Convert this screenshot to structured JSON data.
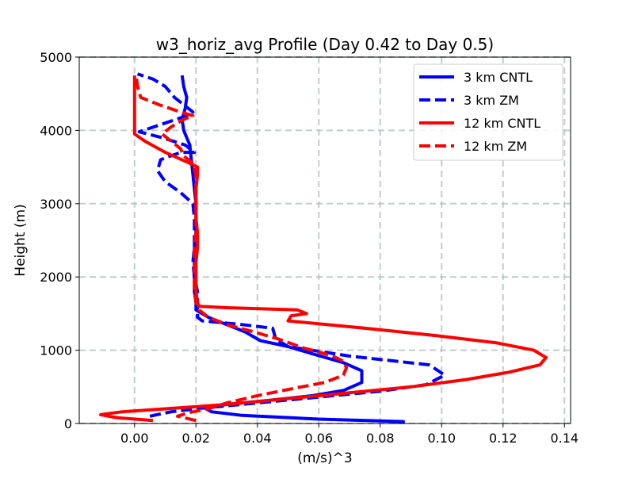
{
  "chart_data": {
    "type": "line",
    "title": "w3_horiz_avg Profile (Day 0.42 to Day 0.5)",
    "xlabel": "(m/s)^3",
    "ylabel": "Height (m)",
    "xlim": [
      -0.018,
      0.142
    ],
    "ylim": [
      0,
      5000
    ],
    "xticks": [
      0.0,
      0.02,
      0.04,
      0.06,
      0.08,
      0.1,
      0.12,
      0.14
    ],
    "xtick_labels": [
      "0.00",
      "0.02",
      "0.04",
      "0.06",
      "0.08",
      "0.10",
      "0.12",
      "0.14"
    ],
    "yticks": [
      0,
      1000,
      2000,
      3000,
      4000,
      5000
    ],
    "ytick_labels": [
      "0",
      "1000",
      "2000",
      "3000",
      "4000",
      "5000"
    ],
    "grid": true,
    "legend_position": "top-right",
    "series": [
      {
        "name": "3 km CNTL",
        "color": "#0000ff",
        "dash": "solid",
        "points": [
          [
            0.088,
            25
          ],
          [
            0.06,
            60
          ],
          [
            0.035,
            110
          ],
          [
            0.025,
            160
          ],
          [
            0.023,
            210
          ],
          [
            0.03,
            260
          ],
          [
            0.045,
            320
          ],
          [
            0.058,
            380
          ],
          [
            0.068,
            450
          ],
          [
            0.074,
            560
          ],
          [
            0.074,
            720
          ],
          [
            0.068,
            830
          ],
          [
            0.058,
            950
          ],
          [
            0.05,
            1050
          ],
          [
            0.041,
            1130
          ],
          [
            0.036,
            1250
          ],
          [
            0.03,
            1350
          ],
          [
            0.024,
            1450
          ],
          [
            0.02,
            1550
          ],
          [
            0.02,
            1650
          ],
          [
            0.0195,
            1800
          ],
          [
            0.0195,
            2000
          ],
          [
            0.0195,
            2200
          ],
          [
            0.0195,
            2400
          ],
          [
            0.02,
            2600
          ],
          [
            0.02,
            2800
          ],
          [
            0.02,
            3000
          ],
          [
            0.0195,
            3200
          ],
          [
            0.019,
            3400
          ],
          [
            0.0185,
            3600
          ],
          [
            0.018,
            3800
          ],
          [
            0.016,
            4000
          ],
          [
            0.0155,
            4150
          ],
          [
            0.0165,
            4300
          ],
          [
            0.017,
            4450
          ],
          [
            0.016,
            4600
          ],
          [
            0.0155,
            4750
          ]
        ]
      },
      {
        "name": "3 km ZM",
        "color": "#0000ff",
        "dash": "dashed",
        "points": [
          [
            0.005,
            100
          ],
          [
            0.012,
            160
          ],
          [
            0.022,
            210
          ],
          [
            0.04,
            280
          ],
          [
            0.06,
            360
          ],
          [
            0.08,
            440
          ],
          [
            0.095,
            530
          ],
          [
            0.101,
            660
          ],
          [
            0.096,
            800
          ],
          [
            0.07,
            920
          ],
          [
            0.05,
            1050
          ],
          [
            0.046,
            1150
          ],
          [
            0.045,
            1300
          ],
          [
            0.035,
            1350
          ],
          [
            0.022,
            1400
          ],
          [
            0.0205,
            1450
          ],
          [
            0.0205,
            1600
          ],
          [
            0.0205,
            1800
          ],
          [
            0.0195,
            2000
          ],
          [
            0.019,
            2200
          ],
          [
            0.0195,
            2400
          ],
          [
            0.0195,
            2600
          ],
          [
            0.0195,
            2800
          ],
          [
            0.019,
            3000
          ],
          [
            0.015,
            3150
          ],
          [
            0.01,
            3300
          ],
          [
            0.0075,
            3450
          ],
          [
            0.0085,
            3600
          ],
          [
            0.015,
            3700
          ],
          [
            0.0195,
            3700
          ],
          [
            0.0165,
            3800
          ],
          [
            0.009,
            3900
          ],
          [
            0.0015,
            3980
          ],
          [
            0.01,
            4100
          ],
          [
            0.017,
            4200
          ],
          [
            0.019,
            4250
          ],
          [
            0.016,
            4350
          ],
          [
            0.013,
            4450
          ],
          [
            0.01,
            4600
          ],
          [
            0.006,
            4700
          ],
          [
            0.001,
            4770
          ]
        ]
      },
      {
        "name": "12 km CNTL",
        "color": "#ff0000",
        "dash": "solid",
        "points": [
          [
            0.006,
            40
          ],
          [
            -0.006,
            80
          ],
          [
            -0.011,
            120
          ],
          [
            -0.004,
            160
          ],
          [
            0.01,
            200
          ],
          [
            0.03,
            260
          ],
          [
            0.05,
            340
          ],
          [
            0.07,
            420
          ],
          [
            0.09,
            500
          ],
          [
            0.108,
            600
          ],
          [
            0.122,
            700
          ],
          [
            0.132,
            800
          ],
          [
            0.134,
            900
          ],
          [
            0.13,
            1000
          ],
          [
            0.118,
            1100
          ],
          [
            0.098,
            1200
          ],
          [
            0.075,
            1300
          ],
          [
            0.05,
            1400
          ],
          [
            0.051,
            1470
          ],
          [
            0.056,
            1500
          ],
          [
            0.053,
            1550
          ],
          [
            0.03,
            1580
          ],
          [
            0.021,
            1600
          ],
          [
            0.0205,
            1650
          ],
          [
            0.02,
            1800
          ],
          [
            0.02,
            2000
          ],
          [
            0.02,
            2200
          ],
          [
            0.0205,
            2400
          ],
          [
            0.0205,
            2600
          ],
          [
            0.02,
            2800
          ],
          [
            0.02,
            3000
          ],
          [
            0.02,
            3200
          ],
          [
            0.0205,
            3400
          ],
          [
            0.0205,
            3500
          ],
          [
            0.018,
            3550
          ],
          [
            0.01,
            3700
          ],
          [
            0.0035,
            3850
          ],
          [
            0.0,
            3950
          ],
          [
            0.0,
            4100
          ],
          [
            0.0,
            4300
          ],
          [
            0.0,
            4500
          ],
          [
            0.0,
            4750
          ]
        ]
      },
      {
        "name": "12 km ZM",
        "color": "#ff0000",
        "dash": "dashed",
        "points": [
          [
            0.02,
            40
          ],
          [
            0.014,
            100
          ],
          [
            0.018,
            150
          ],
          [
            0.024,
            200
          ],
          [
            0.03,
            280
          ],
          [
            0.04,
            380
          ],
          [
            0.052,
            480
          ],
          [
            0.062,
            560
          ],
          [
            0.068,
            660
          ],
          [
            0.069,
            760
          ],
          [
            0.068,
            850
          ],
          [
            0.064,
            930
          ],
          [
            0.055,
            1030
          ],
          [
            0.047,
            1150
          ],
          [
            0.038,
            1260
          ],
          [
            0.03,
            1350
          ],
          [
            0.024,
            1450
          ],
          [
            0.021,
            1550
          ],
          [
            0.02,
            1650
          ],
          [
            0.0195,
            1800
          ],
          [
            0.0195,
            2000
          ],
          [
            0.0195,
            2200
          ],
          [
            0.0195,
            2400
          ],
          [
            0.02,
            2600
          ],
          [
            0.02,
            2800
          ],
          [
            0.02,
            3000
          ],
          [
            0.02,
            3200
          ],
          [
            0.02,
            3400
          ],
          [
            0.019,
            3550
          ],
          [
            0.016,
            3650
          ],
          [
            0.015,
            3750
          ],
          [
            0.012,
            3850
          ],
          [
            0.009,
            3950
          ],
          [
            0.012,
            4050
          ],
          [
            0.016,
            4150
          ],
          [
            0.019,
            4200
          ],
          [
            0.015,
            4250
          ],
          [
            0.008,
            4350
          ],
          [
            0.002,
            4450
          ],
          [
            0.001,
            4600
          ],
          [
            0.0005,
            4750
          ]
        ]
      }
    ]
  }
}
